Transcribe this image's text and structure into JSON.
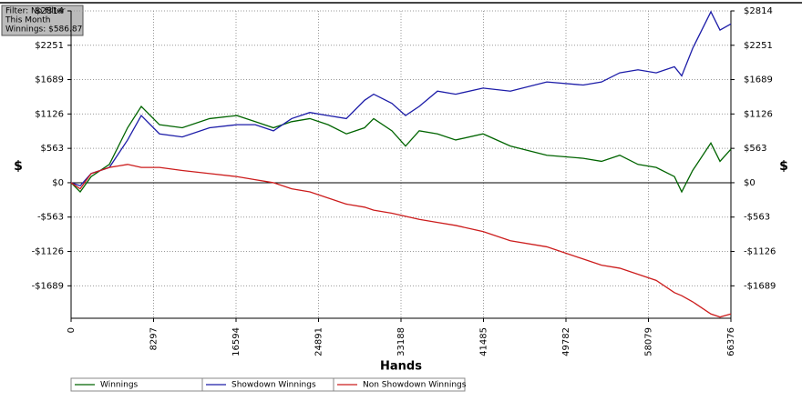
{
  "chart_data": {
    "type": "line",
    "annotations": [
      "Filter: No Filter",
      "This Month",
      "Winnings: $586.87"
    ],
    "xlabel": "Hands",
    "ylabel": "$",
    "y2label": "$",
    "x": [
      0,
      917,
      2017,
      3850,
      5684,
      7059,
      8893,
      11185,
      13935,
      16686,
      18520,
      20353,
      22187,
      24020,
      25854,
      27688,
      29521,
      30438,
      32271,
      33647,
      35022,
      36856,
      38690,
      41440,
      44190,
      47857,
      51525,
      53359,
      55192,
      57026,
      58859,
      60693,
      61427,
      62527,
      64360,
      65277,
      66376
    ],
    "series": [
      {
        "name": "Winnings",
        "color": "#006400",
        "values": [
          0,
          -150,
          100,
          300,
          900,
          1250,
          950,
          900,
          1050,
          1100,
          1000,
          900,
          1000,
          1050,
          950,
          800,
          900,
          1050,
          850,
          600,
          850,
          800,
          700,
          800,
          600,
          450,
          400,
          350,
          450,
          300,
          250,
          100,
          -150,
          200,
          650,
          350,
          550
        ]
      },
      {
        "name": "Showdown Winnings",
        "color": "#1c1ca8",
        "values": [
          0,
          -50,
          150,
          250,
          700,
          1100,
          800,
          750,
          900,
          950,
          950,
          850,
          1050,
          1150,
          1100,
          1050,
          1350,
          1450,
          1300,
          1100,
          1250,
          1500,
          1450,
          1550,
          1500,
          1650,
          1600,
          1650,
          1800,
          1850,
          1800,
          1900,
          1750,
          2200,
          2800,
          2500,
          2600
        ]
      },
      {
        "name": "Non Showdown Winnings",
        "color": "#cc1c1c",
        "values": [
          0,
          -100,
          150,
          250,
          300,
          250,
          250,
          200,
          150,
          100,
          50,
          0,
          -100,
          -150,
          -250,
          -350,
          -400,
          -450,
          -500,
          -550,
          -600,
          -650,
          -700,
          -800,
          -950,
          -1050,
          -1250,
          -1350,
          -1400,
          -1500,
          -1600,
          -1800,
          -1850,
          -1950,
          -2150,
          -2200,
          -2150
        ]
      }
    ],
    "xlim": [
      0,
      66376
    ],
    "xticks": [
      0,
      8297,
      16594,
      24891,
      33188,
      41485,
      49782,
      58079,
      66376
    ],
    "ylim": [
      -2220,
      2814
    ],
    "yticks": [
      {
        "value": -1689,
        "label": "-$1689"
      },
      {
        "value": -1126,
        "label": "-$1126"
      },
      {
        "value": -563,
        "label": "-$563"
      },
      {
        "value": 0,
        "label": "$0"
      },
      {
        "value": 563,
        "label": "$563"
      },
      {
        "value": 1126,
        "label": "$1126"
      },
      {
        "value": 1689,
        "label": "$1689"
      },
      {
        "value": 2251,
        "label": "$2251"
      },
      {
        "value": 2814,
        "label": "$2814"
      }
    ],
    "grid": true
  }
}
